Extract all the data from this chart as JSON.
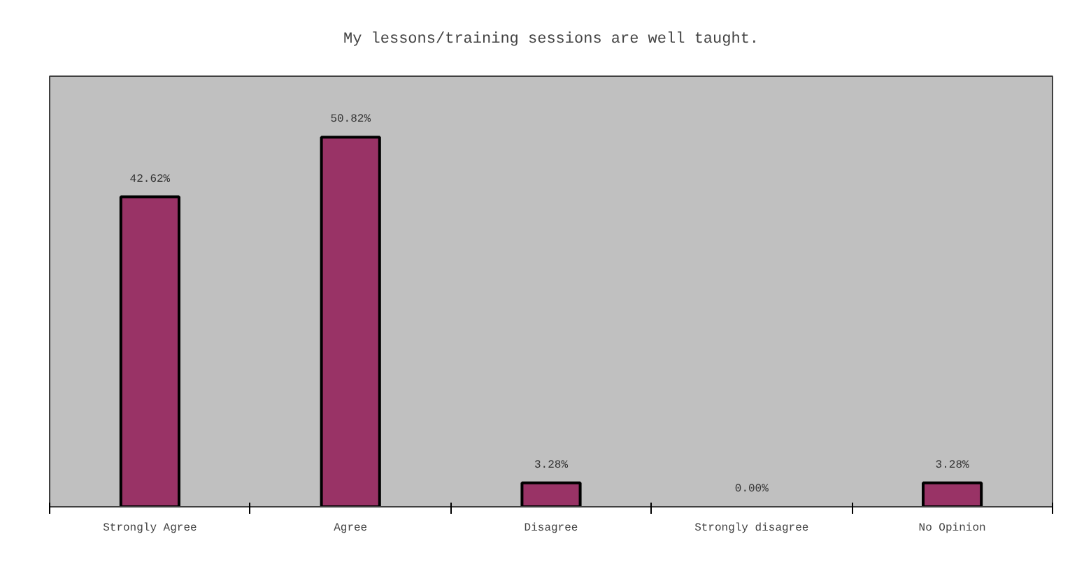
{
  "chart_data": {
    "type": "bar",
    "title": "My lessons/training sessions are well taught.",
    "categories": [
      "Strongly Agree",
      "Agree",
      "Disagree",
      "Strongly disagree",
      "No Opinion"
    ],
    "values": [
      42.62,
      50.82,
      3.28,
      0.0,
      3.28
    ],
    "value_labels": [
      "42.62%",
      "50.82%",
      "3.28%",
      "0.00%",
      "3.28%"
    ],
    "color": "#993366",
    "grid": false
  }
}
